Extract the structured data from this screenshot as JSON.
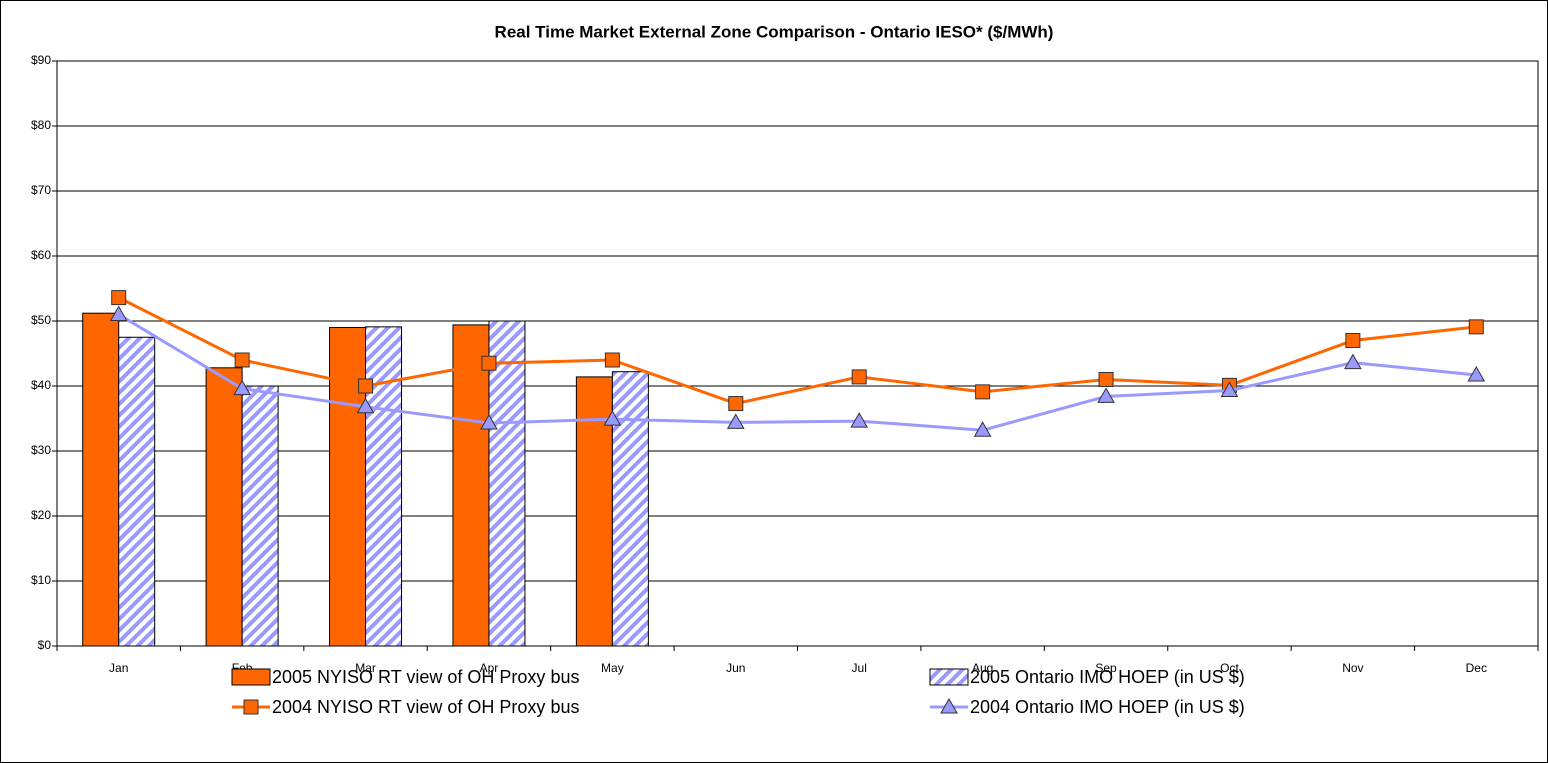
{
  "chart_data": {
    "type": "bar",
    "title": "Real Time Market External Zone Comparison - Ontario IESO* ($/MWh)",
    "categories": [
      "Jan",
      "Feb",
      "Mar",
      "Apr",
      "May",
      "Jun",
      "Jul",
      "Aug",
      "Sep",
      "Oct",
      "Nov",
      "Dec"
    ],
    "series": [
      {
        "name": "2005 NYISO RT view of OH Proxy bus",
        "type": "bar",
        "color": "#ff6600",
        "values": [
          51.2,
          42.8,
          49.0,
          49.4,
          41.4,
          null,
          null,
          null,
          null,
          null,
          null,
          null
        ]
      },
      {
        "name": "2005 Ontario IMO HOEP (in US $)",
        "type": "bar",
        "color": "#9999ff",
        "hatch": true,
        "values": [
          47.5,
          40.0,
          49.1,
          50.0,
          42.2,
          null,
          null,
          null,
          null,
          null,
          null,
          null
        ]
      },
      {
        "name": "2004 NYISO RT view of OH Proxy bus",
        "type": "line",
        "color": "#ff6600",
        "marker": "square",
        "values": [
          53.6,
          44.0,
          40.0,
          43.5,
          44.0,
          37.3,
          41.4,
          39.1,
          41.0,
          40.1,
          47.0,
          49.1
        ]
      },
      {
        "name": "2004 Ontario IMO HOEP (in US $)",
        "type": "line",
        "color": "#9999ff",
        "marker": "triangle",
        "values": [
          51.0,
          39.6,
          36.8,
          34.3,
          34.9,
          34.4,
          34.6,
          33.2,
          38.4,
          39.3,
          43.6,
          41.7
        ]
      }
    ],
    "ylim": [
      0,
      90
    ],
    "yticks": [
      {
        "value": 0,
        "label": "$0"
      },
      {
        "value": 10,
        "label": "$10"
      },
      {
        "value": 20,
        "label": "$20"
      },
      {
        "value": 30,
        "label": "$30"
      },
      {
        "value": 40,
        "label": "$40"
      },
      {
        "value": 50,
        "label": "$50"
      },
      {
        "value": 60,
        "label": "$60"
      },
      {
        "value": 70,
        "label": "$70"
      },
      {
        "value": 80,
        "label": "$80"
      },
      {
        "value": 90,
        "label": "$90"
      }
    ],
    "grid": true,
    "legend": "bottom"
  }
}
